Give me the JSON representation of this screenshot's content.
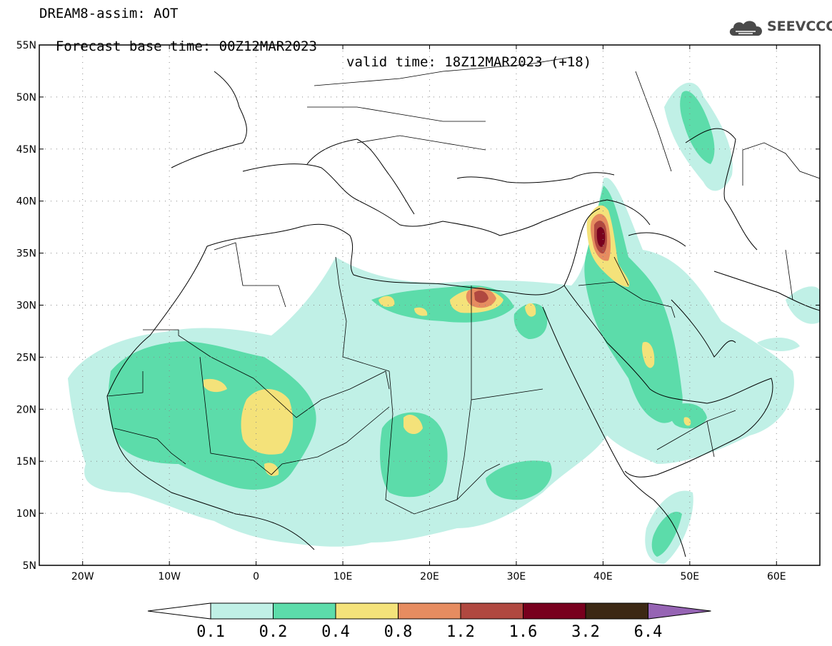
{
  "header": {
    "model_field": "DREAM8-assim: AOT",
    "base_time": "Forecast base time: 00Z12MAR2023",
    "valid_time": "valid time: 18Z12MAR2023 (+18)",
    "logo_text": "SEEVCCC"
  },
  "map": {
    "lon_range": [
      -25,
      65
    ],
    "lat_range": [
      5,
      55
    ],
    "lat_ticks": [
      "55N",
      "50N",
      "45N",
      "40N",
      "35N",
      "30N",
      "25N",
      "20N",
      "15N",
      "10N",
      "5N"
    ],
    "lon_ticks": [
      "20W",
      "10W",
      "0",
      "10E",
      "20E",
      "30E",
      "40E",
      "50E",
      "60E"
    ],
    "grid": "dotted"
  },
  "colorbar": {
    "levels": [
      "0.1",
      "0.2",
      "0.4",
      "0.8",
      "1.2",
      "1.6",
      "3.2",
      "6.4"
    ],
    "colors": [
      "#ffffff",
      "#c0f0e6",
      "#5cdcaa",
      "#f4e27a",
      "#e68c60",
      "#b04840",
      "#78001e",
      "#3c2814",
      "#9664b4"
    ]
  }
}
